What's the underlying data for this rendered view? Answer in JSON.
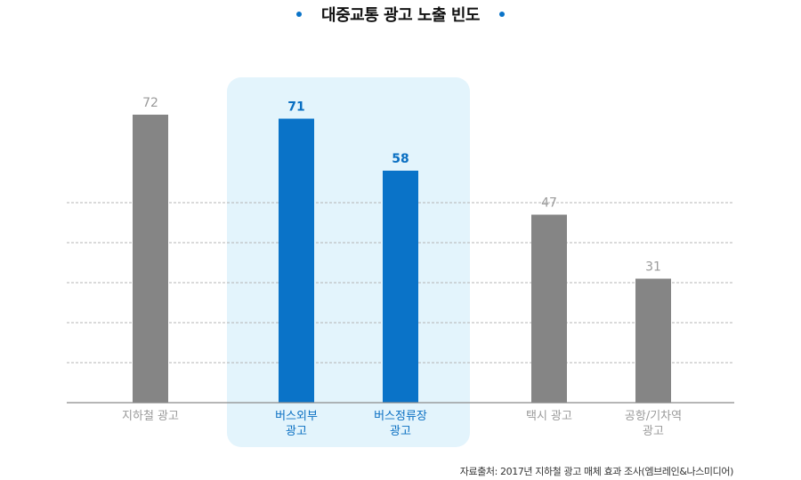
{
  "title": "대중교통 광고 노출 빈도",
  "colors": {
    "gray_bar": "#858585",
    "blue_bar": "#0a73c8",
    "gray_text": "#9a9a9a",
    "blue_text": "#0a6fc2",
    "highlight_bg": "#e3f4fc",
    "title_dot": "#0a73c8",
    "grid": "#b5b5b5",
    "baseline": "#8a8a8a"
  },
  "source": "자료출처: 2017년 지하철 광고 매체 효과 조사(엠브레인&나스미디어)",
  "chart_data": {
    "type": "bar",
    "title": "대중교통 광고 노출 빈도",
    "categories": [
      [
        "지하철 광고"
      ],
      [
        "버스외부",
        "광고"
      ],
      [
        "버스정류장",
        "광고"
      ],
      [
        "택시 광고"
      ],
      [
        "공항/기차역",
        "광고"
      ]
    ],
    "values": [
      72,
      71,
      58,
      47,
      31
    ],
    "value_labels": [
      "72",
      "71",
      "58",
      "47",
      "31"
    ],
    "highlighted": [
      false,
      true,
      true,
      false,
      false
    ],
    "ylim": [
      0,
      80
    ],
    "grid": true,
    "gridline_values": [
      10,
      20,
      30,
      40,
      50
    ],
    "xlabel": "",
    "ylabel": ""
  }
}
